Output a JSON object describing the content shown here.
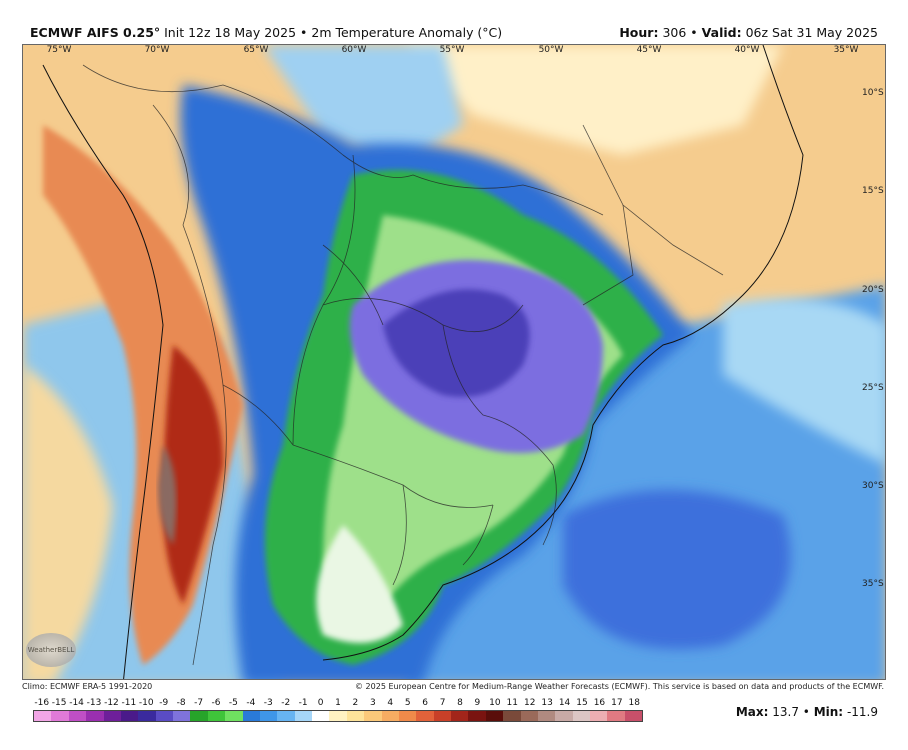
{
  "header": {
    "model": "ECMWF AIFS 0.25°",
    "init": "Init 12z 18 May 2025",
    "variable": "2m Temperature Anomaly (°C)",
    "hour_label": "Hour:",
    "hour_value": "306",
    "valid_label": "Valid:",
    "valid_value": "06z Sat 31 May 2025"
  },
  "map": {
    "lon_labels": [
      "75°W",
      "70°W",
      "65°W",
      "60°W",
      "55°W",
      "50°W",
      "45°W",
      "40°W",
      "35°W"
    ],
    "lat_labels": [
      "10°S",
      "15°S",
      "20°S",
      "25°S",
      "30°S",
      "35°S"
    ]
  },
  "footer": {
    "climo": "Climo: ECMWF ERA-5 1991-2020",
    "copyright": "© 2025 European Centre for Medium-Range Weather Forecasts (ECMWF). This service is based on data and products of the ECMWF."
  },
  "colorbar": {
    "ticks": [
      "-16",
      "-15",
      "-14",
      "-13",
      "-12",
      "-11",
      "-10",
      "-9",
      "-8",
      "-7",
      "-6",
      "-5",
      "-4",
      "-3",
      "-2",
      "-1",
      "0",
      "1",
      "2",
      "3",
      "4",
      "5",
      "6",
      "7",
      "8",
      "9",
      "10",
      "11",
      "12",
      "13",
      "14",
      "15",
      "16",
      "17",
      "18"
    ],
    "colors": [
      "#f2a6e6",
      "#e07ad8",
      "#c04fc6",
      "#9a2fb0",
      "#6e1f9a",
      "#4a1a8a",
      "#3a2a9e",
      "#5a4cc4",
      "#7f73dc",
      "#27a42a",
      "#3fc43a",
      "#6fe060",
      "#2a7ad8",
      "#3f96e8",
      "#67b4f2",
      "#a6d6f8",
      "#ffffff",
      "#fff2c2",
      "#fde39a",
      "#fbc97a",
      "#f6ac62",
      "#f08a4a",
      "#e2623a",
      "#c84028",
      "#a2251a",
      "#7a1410",
      "#5a0e0a",
      "#7a4a3a",
      "#9a6a5a",
      "#b08a80",
      "#c8aaa6",
      "#dcc6c4",
      "#ecaeb2",
      "#e07a82",
      "#c8506a"
    ]
  },
  "stats": {
    "max_label": "Max:",
    "max_value": "13.7",
    "min_label": "Min:",
    "min_value": "-11.9"
  },
  "logo": {
    "text": "WeatherBELL"
  }
}
